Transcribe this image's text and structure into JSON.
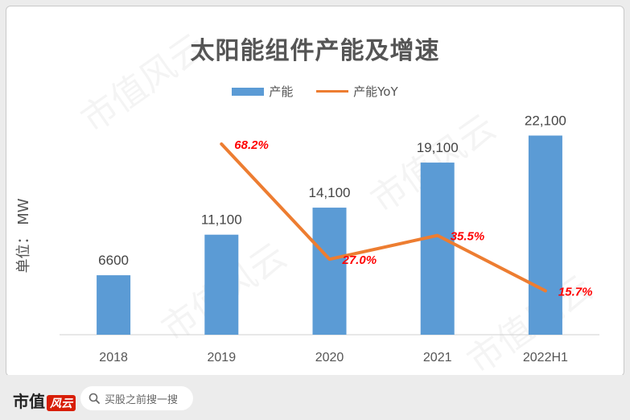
{
  "title": "太阳能组件产能及增速",
  "legend": {
    "bar_label": "产能",
    "line_label": "产能YoY"
  },
  "ylabel": "单位： MW",
  "watermark": "市值风云",
  "footer": {
    "brand": "市值",
    "brand_logo": "风云",
    "search_placeholder": "买股之前搜一搜"
  },
  "colors": {
    "bar": "#5b9bd5",
    "line": "#ed7d31",
    "yoy_label": "#ff0000"
  },
  "chart_data": {
    "type": "bar",
    "categories": [
      "2018",
      "2019",
      "2020",
      "2021",
      "2022H1"
    ],
    "series": [
      {
        "name": "产能",
        "type": "bar",
        "values": [
          6600,
          11100,
          14100,
          19100,
          22100
        ],
        "labels": [
          "6600",
          "11,100",
          "14,100",
          "19,100",
          "22,100"
        ]
      },
      {
        "name": "产能YoY",
        "type": "line",
        "values": [
          null,
          68.2,
          27.0,
          35.5,
          15.7
        ],
        "labels": [
          "",
          "68.2%",
          "27.0%",
          "35.5%",
          "15.7%"
        ]
      }
    ],
    "title": "太阳能组件产能及增速",
    "ylabel": "单位： MW",
    "ylim": [
      0,
      25000
    ],
    "y2lim": [
      0,
      80
    ]
  }
}
